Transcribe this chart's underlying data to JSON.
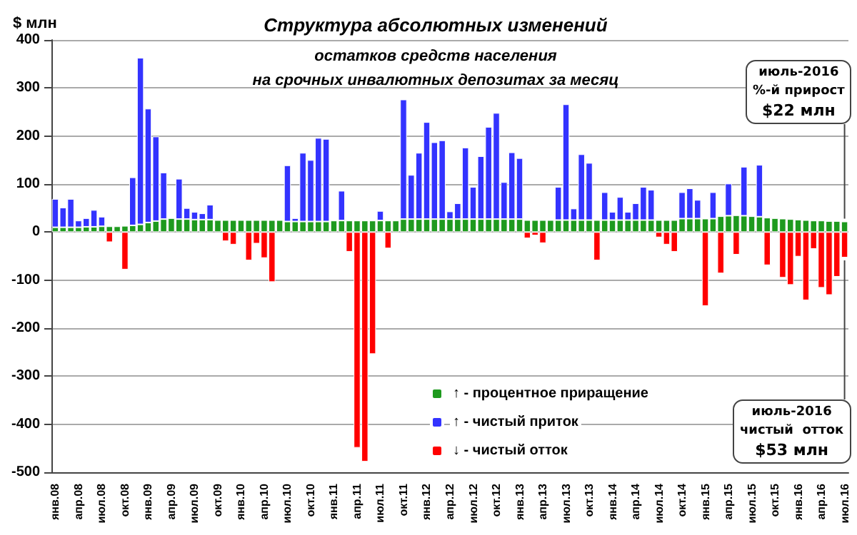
{
  "chart_data": {
    "type": "bar",
    "title": "Структура абсолютных изменений",
    "subtitle": "остатков средств населения\nна срочных инвалютных депозитах за месяц",
    "ylabel": "$ млн",
    "stacked": true,
    "categories": [
      "янв.08",
      null,
      null,
      "апр.08",
      null,
      null,
      "июл.08",
      null,
      null,
      "окт.08",
      null,
      null,
      "янв.09",
      null,
      null,
      "апр.09",
      null,
      null,
      "июл.09",
      null,
      null,
      "окт.09",
      null,
      null,
      "янв.10",
      null,
      null,
      "апр.10",
      null,
      null,
      "июл.10",
      null,
      null,
      "окт.10",
      null,
      null,
      "янв.11",
      null,
      null,
      "апр.11",
      null,
      null,
      "июл.11",
      null,
      null,
      "окт.11",
      null,
      null,
      "янв.12",
      null,
      null,
      "апр.12",
      null,
      null,
      "июл.12",
      null,
      null,
      "окт.12",
      null,
      null,
      "янв.13",
      null,
      null,
      "апр.13",
      null,
      null,
      "июл.13",
      null,
      null,
      "окт.13",
      null,
      null,
      "янв.14",
      null,
      null,
      "апр.14",
      null,
      null,
      "июл.14",
      null,
      null,
      "окт.14",
      null,
      null,
      "янв.15",
      null,
      null,
      "апр.15",
      null,
      null,
      "июл.15",
      null,
      null,
      "окт.15",
      null,
      null,
      "янв.16",
      null,
      null,
      "апр.16",
      null,
      null,
      "июл.16"
    ],
    "series": [
      {
        "name": "↑ - процентное приращение",
        "color": "#1e9a1e",
        "values": [
          10,
          10,
          10,
          10,
          11,
          11,
          12,
          12,
          12,
          13,
          14,
          16,
          20,
          23,
          27,
          29,
          27,
          27,
          26,
          26,
          26,
          25,
          25,
          25,
          25,
          25,
          25,
          25,
          25,
          25,
          22,
          22,
          22,
          22,
          22,
          22,
          24,
          24,
          24,
          24,
          24,
          24,
          24,
          24,
          24,
          27,
          27,
          27,
          27,
          27,
          27,
          27,
          27,
          27,
          27,
          27,
          27,
          27,
          27,
          27,
          27,
          25,
          25,
          25,
          25,
          25,
          25,
          25,
          25,
          25,
          25,
          25,
          25,
          25,
          25,
          25,
          25,
          25,
          25,
          25,
          25,
          28,
          28,
          28,
          28,
          28,
          33,
          34,
          35,
          34,
          33,
          32,
          30,
          29,
          28,
          27,
          26,
          25,
          24,
          24,
          23,
          23,
          22
        ]
      },
      {
        "name": "↑ - чистый приток",
        "color": "#3333ff",
        "values": [
          59,
          41,
          59,
          14,
          18,
          35,
          20,
          null,
          null,
          null,
          100,
          347,
          237,
          176,
          97,
          null,
          84,
          23,
          16,
          13,
          31,
          null,
          null,
          null,
          null,
          null,
          null,
          null,
          null,
          null,
          117,
          7,
          143,
          128,
          174,
          172,
          null,
          62,
          null,
          null,
          null,
          null,
          20,
          null,
          null,
          249,
          92,
          138,
          202,
          160,
          164,
          16,
          33,
          149,
          67,
          131,
          192,
          221,
          77,
          139,
          127,
          null,
          null,
          null,
          null,
          69,
          241,
          24,
          137,
          119,
          null,
          58,
          17,
          48,
          17,
          35,
          69,
          63,
          null,
          null,
          null,
          55,
          63,
          39,
          null,
          55,
          null,
          67,
          null,
          102,
          null,
          108,
          null,
          null,
          null,
          null,
          null,
          null,
          null,
          null,
          null,
          null,
          null
        ]
      },
      {
        "name": "↓ - чистый отток",
        "color": "#ff0000",
        "values": [
          null,
          null,
          null,
          null,
          null,
          null,
          null,
          -21,
          null,
          -78,
          null,
          null,
          null,
          null,
          null,
          null,
          null,
          null,
          null,
          null,
          null,
          null,
          -19,
          -26,
          null,
          -59,
          -24,
          -54,
          -104,
          null,
          null,
          null,
          null,
          null,
          null,
          null,
          null,
          null,
          -41,
          -449,
          -478,
          -254,
          null,
          -34,
          null,
          null,
          null,
          null,
          null,
          null,
          null,
          null,
          null,
          null,
          null,
          null,
          null,
          null,
          null,
          null,
          null,
          -13,
          -7,
          -23,
          null,
          null,
          null,
          null,
          null,
          null,
          -59,
          null,
          null,
          null,
          null,
          null,
          null,
          null,
          -11,
          -26,
          -41,
          null,
          null,
          null,
          -154,
          null,
          -86,
          null,
          -47,
          null,
          null,
          null,
          -69,
          null,
          -95,
          -110,
          -51,
          -142,
          -35,
          -116,
          -131,
          -93,
          -53
        ]
      }
    ],
    "ylim": [
      -500,
      400
    ],
    "yticks": [
      -500,
      -400,
      -300,
      -200,
      -100,
      0,
      100,
      200,
      300,
      400
    ],
    "grid": "y",
    "legend": "bottom",
    "annotations": [
      {
        "text": "июль-2016\n%-й прирост\n$22 млн",
        "x": "июл.16",
        "y": 22
      },
      {
        "text": "июль-2016\nчистый  отток\n$53 млн",
        "x": "июл.16",
        "y": -53
      }
    ]
  }
}
